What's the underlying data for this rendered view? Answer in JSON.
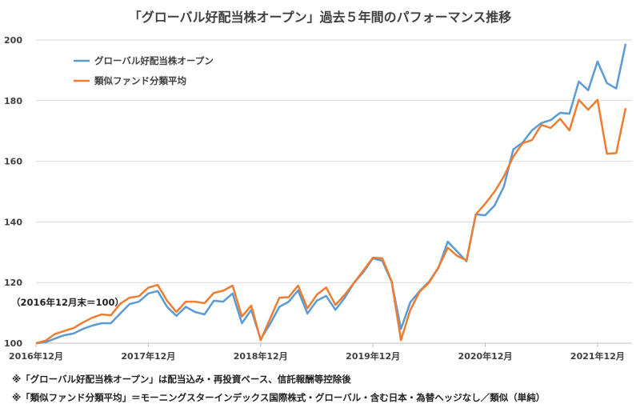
{
  "chart_data": {
    "type": "line",
    "title": "「グローバル好配当株オープン」過去５年間のパフォーマンス推移",
    "xlabel": "",
    "ylabel": "",
    "ylim": [
      100,
      200
    ],
    "yticks": [
      "100",
      "120",
      "140",
      "160",
      "180",
      "200"
    ],
    "x_start": "2016年12月",
    "x_tick_labels": [
      "2016年12月",
      "2017年12月",
      "2018年12月",
      "2019年12月",
      "2020年12月",
      "2021年12月"
    ],
    "x_tick_every": 12,
    "grid": true,
    "legend_position": "top-left",
    "base_note": "（2016年12月末＝100）",
    "series": [
      {
        "name": "グローバル好配当株オープン",
        "color": "#5B9BD5",
        "values": [
          100,
          100.3,
          101.5,
          102.6,
          103.2,
          104.7,
          105.8,
          106.6,
          106.6,
          109.8,
          112.9,
          113.7,
          116.4,
          117.2,
          112,
          109,
          112,
          110.3,
          109.5,
          114,
          113.7,
          116.4,
          106.6,
          111,
          101.3,
          106.3,
          112,
          113.7,
          117.4,
          109.8,
          114,
          115.6,
          111,
          115,
          120,
          123.5,
          128,
          127.2,
          120.3,
          104.7,
          113.5,
          117.2,
          120.3,
          124.8,
          133.5,
          130.3,
          127,
          142.5,
          142.2,
          145.4,
          151.7,
          163.9,
          166.2,
          170.2,
          172.6,
          173.6,
          176,
          175.7,
          186.3,
          183.4,
          192.9,
          185.8,
          184,
          198.7
        ]
      },
      {
        "name": "類似ファンド分類平均",
        "color": "#ED7D31",
        "values": [
          100,
          100.8,
          103,
          104,
          105,
          106.8,
          108.4,
          109.5,
          109.2,
          113,
          115,
          115.5,
          118.3,
          119.2,
          114,
          110.3,
          113.7,
          113.7,
          113.2,
          116.6,
          117.3,
          119,
          108.8,
          112.4,
          101,
          108,
          115,
          115.2,
          119,
          111.5,
          116,
          118.4,
          112.6,
          116,
          120,
          124,
          128.2,
          128,
          120.5,
          101,
          111,
          117,
          120,
          125,
          131.5,
          128.8,
          127.3,
          142.5,
          146,
          150,
          155,
          161.5,
          166,
          167,
          172,
          171,
          174,
          170.2,
          180.3,
          177,
          180.3,
          162.5,
          162.7,
          177.5
        ]
      }
    ]
  },
  "footnotes": [
    "※「グローバル好配当株オープン」は配当込み・再投資ベース、信託報酬等控除後",
    "※「類似ファンド分類平均」＝モーニングスターインデックス国際株式・グローバル・含む日本・為替ヘッジなし／類似（単純）"
  ]
}
